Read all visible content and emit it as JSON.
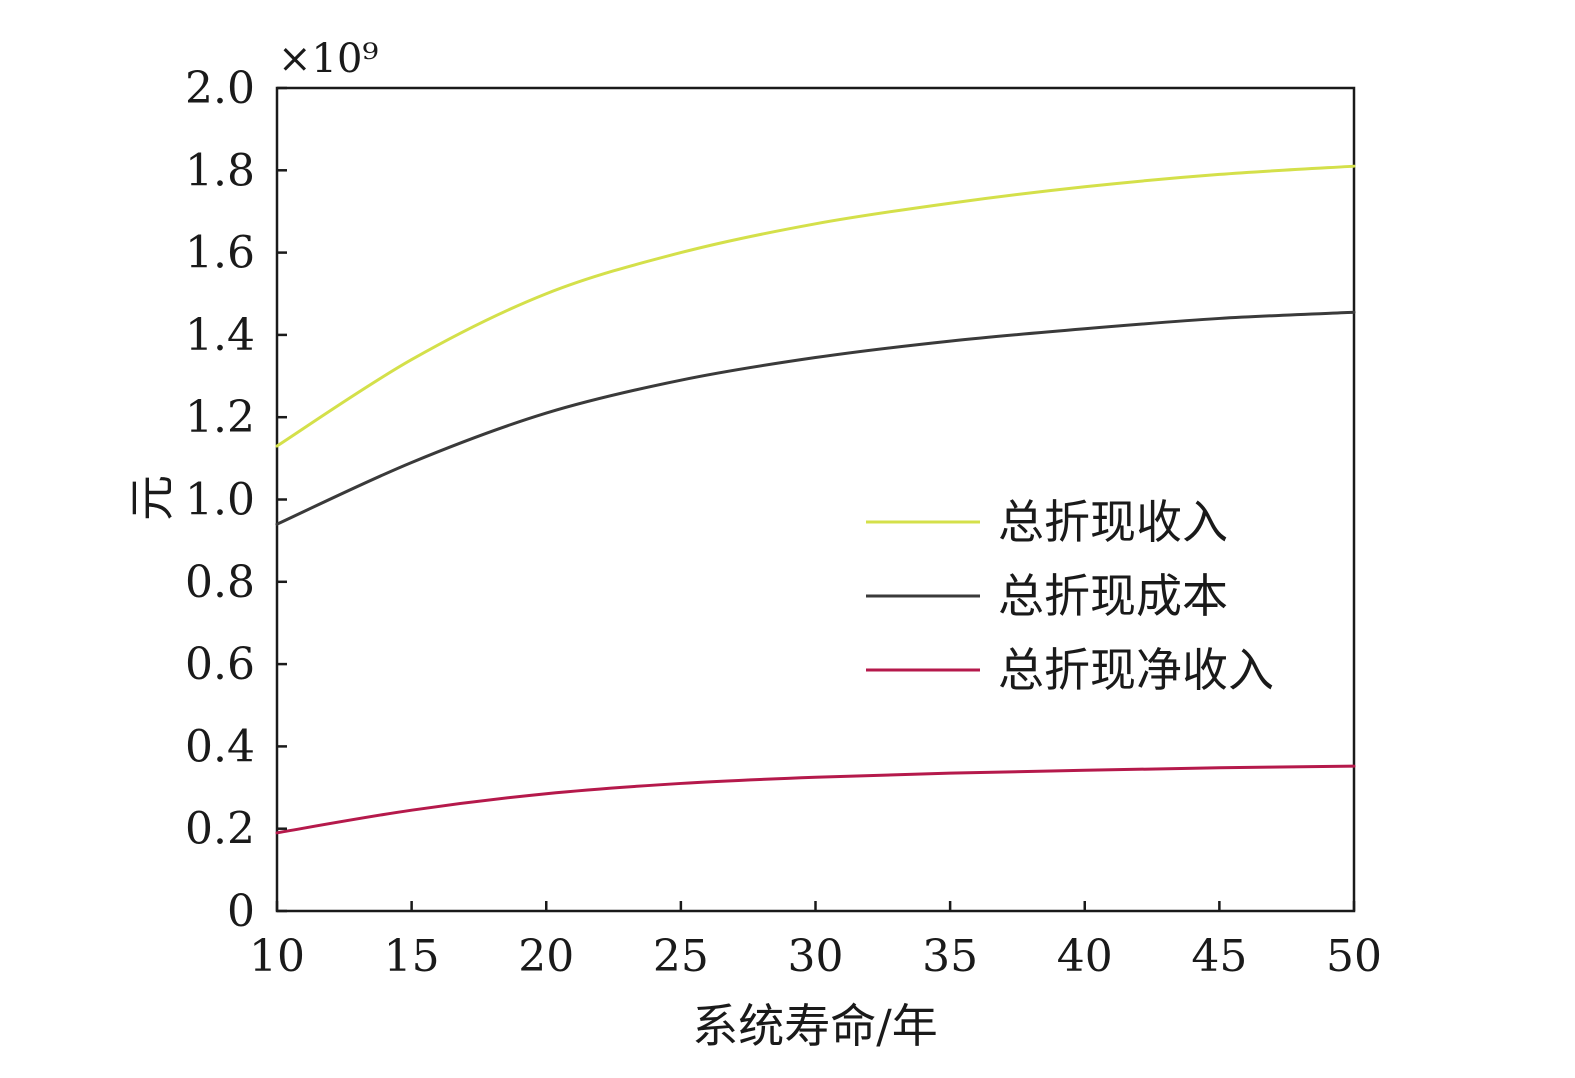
{
  "chart_data": {
    "type": "line",
    "xlabel": "系统寿命/年",
    "ylabel": "元",
    "y_multiplier": "×10⁹",
    "xlim": [
      10,
      50
    ],
    "ylim": [
      0,
      2.0
    ],
    "x_ticks": [
      10,
      15,
      20,
      25,
      30,
      35,
      40,
      45,
      50
    ],
    "y_ticks": [
      0,
      0.2,
      0.4,
      0.6,
      0.8,
      1.0,
      1.2,
      1.4,
      1.6,
      1.8,
      2.0
    ],
    "x_tick_labels": [
      "10",
      "15",
      "20",
      "25",
      "30",
      "35",
      "40",
      "45",
      "50"
    ],
    "y_tick_labels": [
      "0",
      "0.2",
      "0.4",
      "0.6",
      "0.8",
      "1.0",
      "1.2",
      "1.4",
      "1.6",
      "1.8",
      "2.0"
    ],
    "grid": false,
    "legend_position": "right-middle",
    "x": [
      10,
      15,
      20,
      25,
      30,
      35,
      40,
      45,
      50
    ],
    "series": [
      {
        "name": "总折现收入",
        "color": "#d4e04a",
        "values": [
          1.13,
          1.34,
          1.5,
          1.6,
          1.67,
          1.72,
          1.76,
          1.79,
          1.81
        ]
      },
      {
        "name": "总折现成本",
        "color": "#3a3a3a",
        "values": [
          0.94,
          1.09,
          1.21,
          1.29,
          1.345,
          1.385,
          1.415,
          1.44,
          1.455
        ]
      },
      {
        "name": "总折现净收入",
        "color": "#b5194b",
        "values": [
          0.19,
          0.245,
          0.285,
          0.31,
          0.325,
          0.335,
          0.342,
          0.348,
          0.352
        ]
      }
    ]
  }
}
